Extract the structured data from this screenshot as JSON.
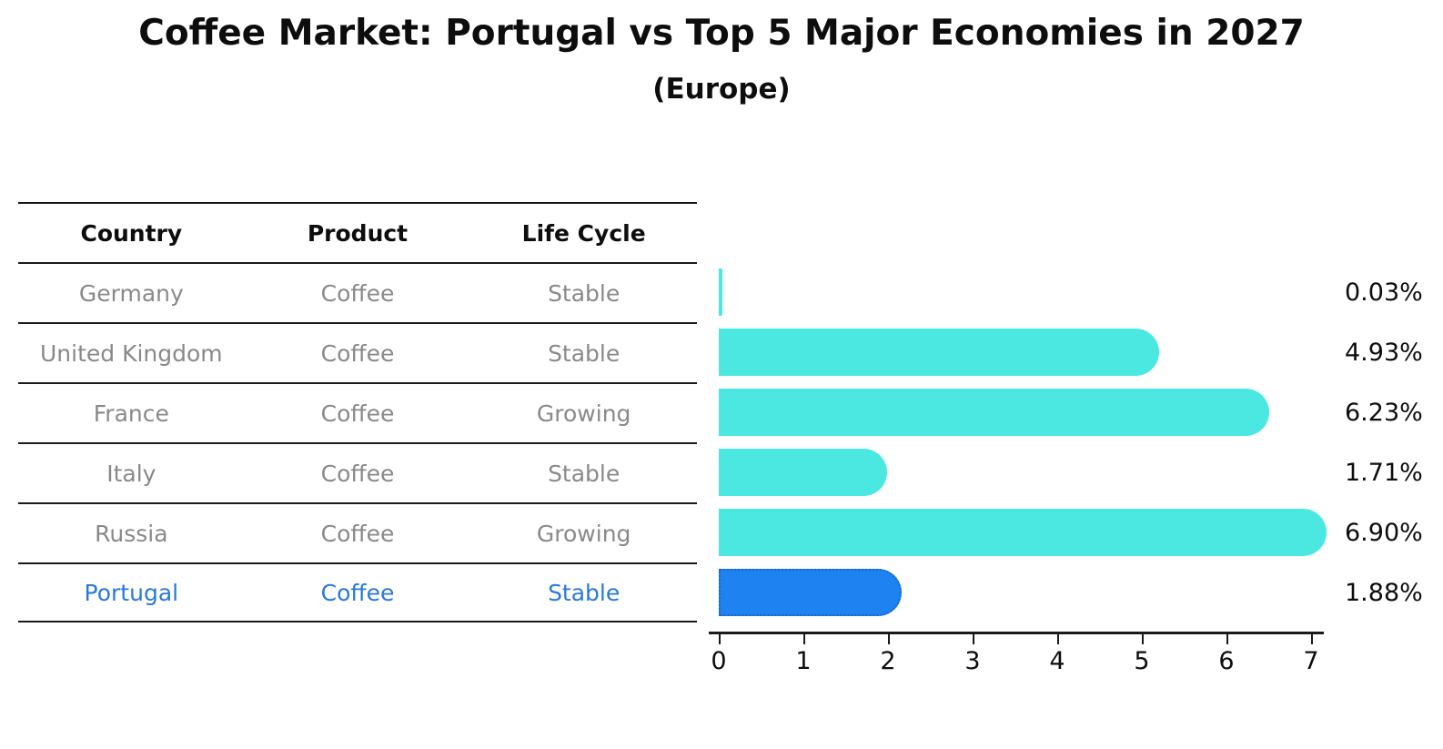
{
  "header": {
    "title": "Coffee Market: Portugal vs Top 5 Major Economies in 2027",
    "subtitle": "(Europe)"
  },
  "table": {
    "columns": [
      "Country",
      "Product",
      "Life Cycle"
    ],
    "rows": [
      {
        "country": "Germany",
        "product": "Coffee",
        "life_cycle": "Stable",
        "highlighted": false
      },
      {
        "country": "United Kingdom",
        "product": "Coffee",
        "life_cycle": "Stable",
        "highlighted": false
      },
      {
        "country": "France",
        "product": "Coffee",
        "life_cycle": "Growing",
        "highlighted": false
      },
      {
        "country": "Italy",
        "product": "Coffee",
        "life_cycle": "Stable",
        "highlighted": false
      },
      {
        "country": "Russia",
        "product": "Coffee",
        "life_cycle": "Growing",
        "highlighted": false
      },
      {
        "country": "Portugal",
        "product": "Coffee",
        "life_cycle": "Stable",
        "highlighted": true
      }
    ]
  },
  "chart_data": {
    "type": "bar",
    "orientation": "horizontal",
    "title": "Coffee Market: Portugal vs Top 5 Major Economies in 2027",
    "subtitle": "(Europe)",
    "categories": [
      "Germany",
      "United Kingdom",
      "France",
      "Italy",
      "Russia",
      "Portugal"
    ],
    "values": [
      0.03,
      4.93,
      6.23,
      1.71,
      6.9,
      1.88
    ],
    "value_labels": [
      "0.03%",
      "4.93%",
      "6.23%",
      "1.71%",
      "6.90%",
      "1.88%"
    ],
    "xlabel": "",
    "ylabel": "",
    "xlim": [
      0,
      7
    ],
    "x_ticks": [
      "0",
      "1",
      "2",
      "3",
      "4",
      "5",
      "6",
      "7"
    ],
    "grid": false,
    "legend": false,
    "colors": {
      "bar": "#4AE8E0",
      "highlight_bar": "#1E82F0",
      "highlight_border": "#1567D2",
      "highlight_text": "#2979d8",
      "text": "#0d0d0d",
      "muted_text": "#898989"
    },
    "highlight_index": 5,
    "highlight_border_style": "dotted"
  }
}
